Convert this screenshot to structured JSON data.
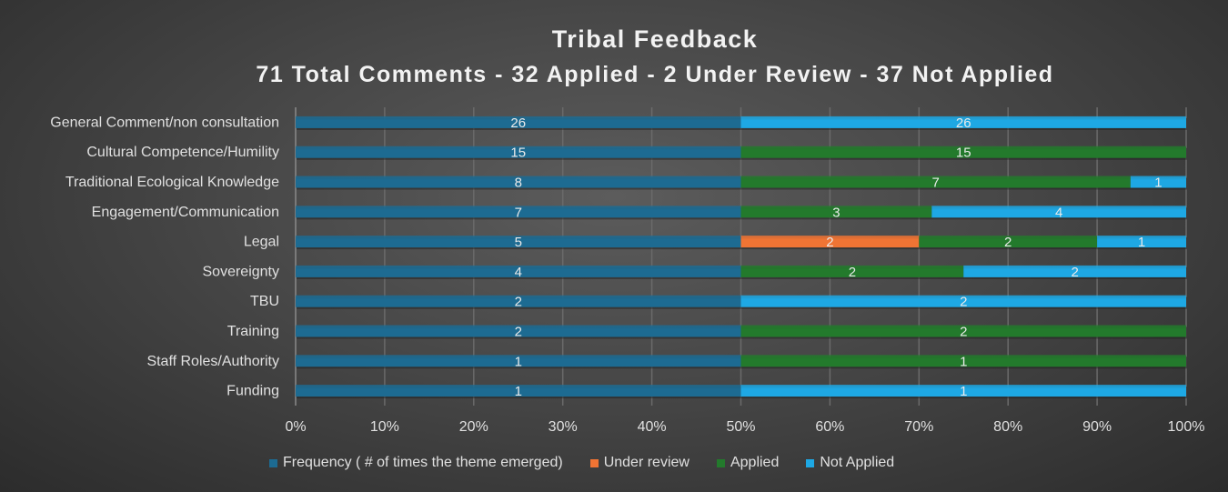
{
  "chart_data": {
    "type": "bar",
    "orientation": "horizontal",
    "stacking": "percent",
    "title": "Tribal Feedback",
    "subtitle": "71 Total Comments - 32 Applied - 2 Under Review - 37 Not Applied",
    "categories": [
      "General Comment/non consultation",
      "Cultural Competence/Humility",
      "Traditional Ecological Knowledge",
      "Engagement/Communication",
      "Legal",
      "Sovereignty",
      "TBU",
      "Training",
      "Staff Roles/Authority",
      "Funding"
    ],
    "series": [
      {
        "name": "Frequency ( # of times the theme emerged)",
        "color": "#1d6b92",
        "values": [
          26,
          15,
          8,
          7,
          5,
          4,
          2,
          2,
          1,
          1
        ]
      },
      {
        "name": "Under review",
        "color": "#f07434",
        "values": [
          0,
          0,
          0,
          0,
          2,
          0,
          0,
          0,
          0,
          0
        ]
      },
      {
        "name": "Applied",
        "color": "#237a2c",
        "values": [
          0,
          15,
          7,
          3,
          2,
          2,
          0,
          2,
          1,
          0
        ]
      },
      {
        "name": "Not Applied",
        "color": "#1ea8e4",
        "values": [
          26,
          0,
          1,
          4,
          1,
          2,
          2,
          0,
          0,
          1
        ]
      }
    ],
    "xticks": [
      "0%",
      "10%",
      "20%",
      "30%",
      "40%",
      "50%",
      "60%",
      "70%",
      "80%",
      "90%",
      "100%"
    ],
    "xlim": [
      0,
      100
    ],
    "grid": true,
    "legend": "bottom"
  }
}
